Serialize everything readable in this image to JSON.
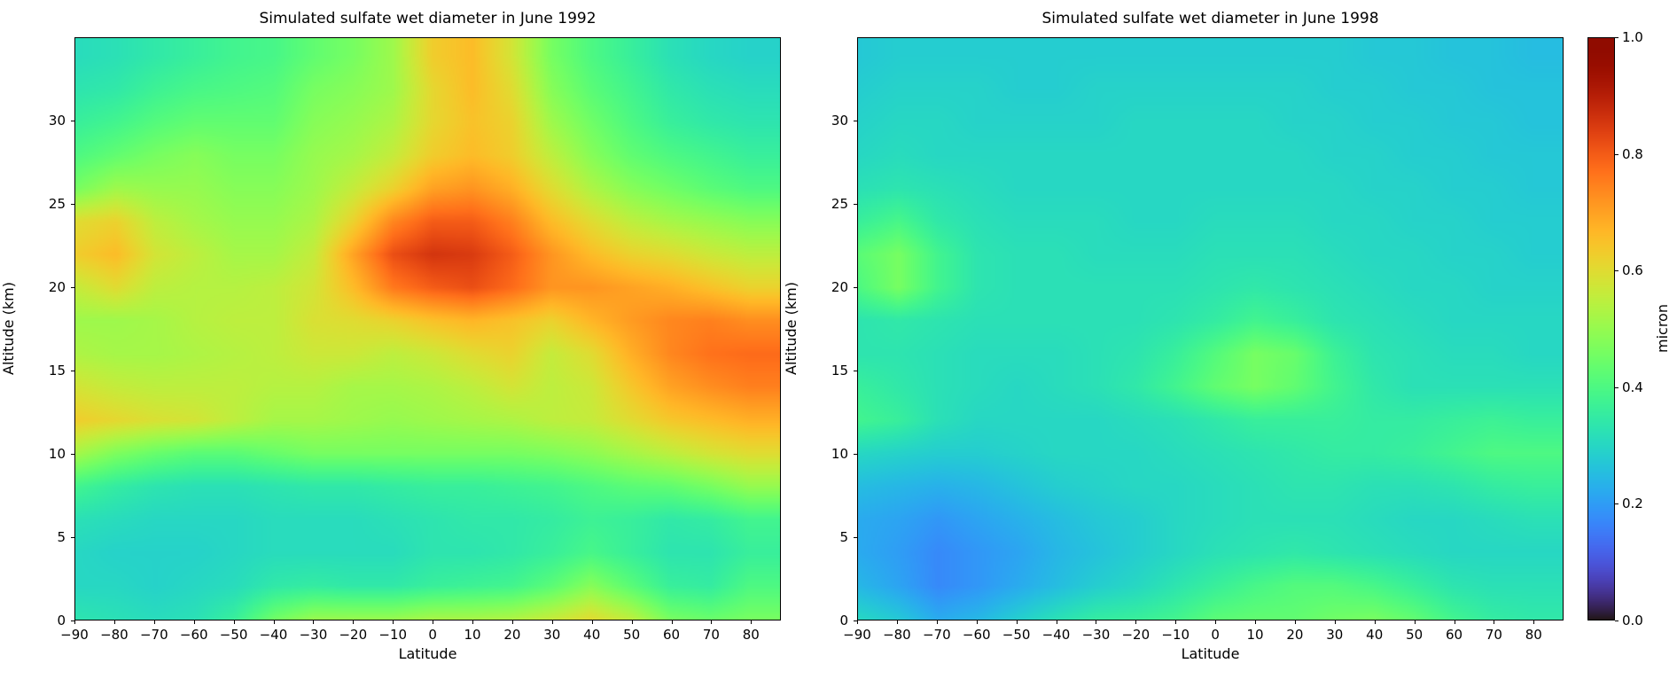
{
  "figure": {
    "background": "#ffffff"
  },
  "chart_data": [
    {
      "type": "heatmap",
      "title": "Simulated sulfate wet diameter in June 1992",
      "xlabel": "Latitude",
      "ylabel": "Altitude (km)",
      "colormap": "turbo",
      "vmin": 0.0,
      "vmax": 1.0,
      "xlim": [
        -90,
        87.5
      ],
      "ylim": [
        0,
        35
      ],
      "x": [
        -90,
        -80,
        -70,
        -60,
        -50,
        -40,
        -30,
        -20,
        -10,
        0,
        10,
        20,
        30,
        40,
        50,
        60,
        70,
        80
      ],
      "y": [
        0,
        2,
        4,
        6,
        8,
        10,
        12,
        14,
        16,
        18,
        20,
        22,
        24,
        26,
        28,
        30,
        32,
        34
      ],
      "x_tick_labels": [
        "−90",
        "−80",
        "−70",
        "−60",
        "−50",
        "−40",
        "−30",
        "−20",
        "−10",
        "0",
        "10",
        "20",
        "30",
        "40",
        "50",
        "60",
        "70",
        "80"
      ],
      "y_ticks": [
        0,
        5,
        10,
        15,
        20,
        25,
        30
      ],
      "y_tick_labels": [
        "0",
        "5",
        "10",
        "15",
        "20",
        "25",
        "30"
      ],
      "values": [
        [
          0.33,
          0.32,
          0.31,
          0.32,
          0.36,
          0.45,
          0.5,
          0.5,
          0.5,
          0.52,
          0.52,
          0.53,
          0.56,
          0.6,
          0.55,
          0.46,
          0.44,
          0.46
        ],
        [
          0.3,
          0.3,
          0.29,
          0.3,
          0.31,
          0.34,
          0.35,
          0.34,
          0.34,
          0.36,
          0.37,
          0.38,
          0.42,
          0.48,
          0.42,
          0.36,
          0.35,
          0.4
        ],
        [
          0.3,
          0.29,
          0.29,
          0.29,
          0.3,
          0.31,
          0.31,
          0.31,
          0.31,
          0.33,
          0.33,
          0.34,
          0.36,
          0.39,
          0.36,
          0.33,
          0.33,
          0.36
        ],
        [
          0.32,
          0.31,
          0.3,
          0.3,
          0.3,
          0.31,
          0.31,
          0.31,
          0.32,
          0.33,
          0.34,
          0.34,
          0.35,
          0.37,
          0.36,
          0.34,
          0.35,
          0.38
        ],
        [
          0.38,
          0.35,
          0.33,
          0.32,
          0.32,
          0.33,
          0.34,
          0.34,
          0.35,
          0.36,
          0.36,
          0.37,
          0.38,
          0.4,
          0.42,
          0.43,
          0.46,
          0.5
        ],
        [
          0.52,
          0.47,
          0.44,
          0.42,
          0.42,
          0.44,
          0.46,
          0.46,
          0.46,
          0.46,
          0.46,
          0.46,
          0.47,
          0.49,
          0.52,
          0.55,
          0.58,
          0.6
        ],
        [
          0.63,
          0.61,
          0.59,
          0.58,
          0.55,
          0.52,
          0.52,
          0.51,
          0.5,
          0.51,
          0.52,
          0.53,
          0.55,
          0.56,
          0.6,
          0.64,
          0.66,
          0.68
        ],
        [
          0.58,
          0.56,
          0.55,
          0.55,
          0.55,
          0.54,
          0.54,
          0.52,
          0.52,
          0.53,
          0.55,
          0.58,
          0.55,
          0.57,
          0.64,
          0.7,
          0.73,
          0.75
        ],
        [
          0.53,
          0.52,
          0.52,
          0.53,
          0.54,
          0.55,
          0.57,
          0.57,
          0.55,
          0.57,
          0.6,
          0.62,
          0.56,
          0.6,
          0.68,
          0.74,
          0.77,
          0.78
        ],
        [
          0.51,
          0.51,
          0.52,
          0.54,
          0.55,
          0.55,
          0.59,
          0.6,
          0.62,
          0.65,
          0.67,
          0.65,
          0.62,
          0.67,
          0.71,
          0.74,
          0.75,
          0.73
        ],
        [
          0.56,
          0.6,
          0.55,
          0.54,
          0.54,
          0.55,
          0.58,
          0.66,
          0.76,
          0.8,
          0.82,
          0.78,
          0.72,
          0.72,
          0.7,
          0.68,
          0.65,
          0.62
        ],
        [
          0.63,
          0.66,
          0.58,
          0.55,
          0.52,
          0.52,
          0.56,
          0.7,
          0.82,
          0.86,
          0.85,
          0.8,
          0.72,
          0.66,
          0.62,
          0.6,
          0.57,
          0.55
        ],
        [
          0.6,
          0.62,
          0.55,
          0.52,
          0.5,
          0.5,
          0.53,
          0.62,
          0.74,
          0.8,
          0.8,
          0.75,
          0.66,
          0.6,
          0.55,
          0.52,
          0.5,
          0.48
        ],
        [
          0.46,
          0.51,
          0.5,
          0.5,
          0.48,
          0.48,
          0.51,
          0.56,
          0.62,
          0.7,
          0.72,
          0.68,
          0.6,
          0.53,
          0.48,
          0.45,
          0.42,
          0.4
        ],
        [
          0.4,
          0.43,
          0.46,
          0.48,
          0.46,
          0.46,
          0.5,
          0.52,
          0.56,
          0.63,
          0.66,
          0.63,
          0.55,
          0.48,
          0.43,
          0.4,
          0.38,
          0.36
        ],
        [
          0.36,
          0.38,
          0.41,
          0.43,
          0.43,
          0.43,
          0.48,
          0.5,
          0.53,
          0.61,
          0.65,
          0.62,
          0.51,
          0.45,
          0.4,
          0.36,
          0.34,
          0.33
        ],
        [
          0.33,
          0.34,
          0.37,
          0.39,
          0.4,
          0.41,
          0.46,
          0.48,
          0.51,
          0.61,
          0.66,
          0.6,
          0.48,
          0.42,
          0.38,
          0.34,
          0.32,
          0.31
        ],
        [
          0.31,
          0.32,
          0.34,
          0.36,
          0.38,
          0.39,
          0.43,
          0.46,
          0.51,
          0.63,
          0.66,
          0.58,
          0.46,
          0.4,
          0.36,
          0.32,
          0.3,
          0.29
        ]
      ]
    },
    {
      "type": "heatmap",
      "title": "Simulated sulfate wet diameter in June 1998",
      "xlabel": "Latitude",
      "ylabel": "Altitude (km)",
      "colormap": "turbo",
      "vmin": 0.0,
      "vmax": 1.0,
      "xlim": [
        -90,
        87.5
      ],
      "ylim": [
        0,
        35
      ],
      "x": [
        -90,
        -80,
        -70,
        -60,
        -50,
        -40,
        -30,
        -20,
        -10,
        0,
        10,
        20,
        30,
        40,
        50,
        60,
        70,
        80
      ],
      "y": [
        0,
        2,
        4,
        6,
        8,
        10,
        12,
        14,
        16,
        18,
        20,
        22,
        24,
        26,
        28,
        30,
        32,
        34
      ],
      "x_tick_labels": [
        "−90",
        "−80",
        "−70",
        "−60",
        "−50",
        "−40",
        "−30",
        "−20",
        "−10",
        "0",
        "10",
        "20",
        "30",
        "40",
        "50",
        "60",
        "70",
        "80"
      ],
      "y_ticks": [
        0,
        5,
        10,
        15,
        20,
        25,
        30
      ],
      "y_tick_labels": [
        "0",
        "5",
        "10",
        "15",
        "20",
        "25",
        "30"
      ],
      "values": [
        [
          0.3,
          0.27,
          0.22,
          0.24,
          0.28,
          0.32,
          0.35,
          0.36,
          0.38,
          0.42,
          0.43,
          0.43,
          0.45,
          0.46,
          0.43,
          0.38,
          0.35,
          0.34
        ],
        [
          0.24,
          0.21,
          0.17,
          0.19,
          0.22,
          0.25,
          0.28,
          0.3,
          0.33,
          0.36,
          0.39,
          0.41,
          0.41,
          0.39,
          0.36,
          0.33,
          0.32,
          0.32
        ],
        [
          0.22,
          0.2,
          0.17,
          0.19,
          0.21,
          0.24,
          0.26,
          0.28,
          0.3,
          0.32,
          0.33,
          0.34,
          0.33,
          0.32,
          0.31,
          0.3,
          0.3,
          0.3
        ],
        [
          0.22,
          0.21,
          0.19,
          0.21,
          0.23,
          0.25,
          0.27,
          0.28,
          0.3,
          0.31,
          0.32,
          0.32,
          0.32,
          0.31,
          0.3,
          0.3,
          0.31,
          0.32
        ],
        [
          0.25,
          0.24,
          0.23,
          0.24,
          0.26,
          0.28,
          0.29,
          0.3,
          0.3,
          0.31,
          0.32,
          0.33,
          0.33,
          0.32,
          0.32,
          0.33,
          0.35,
          0.36
        ],
        [
          0.3,
          0.29,
          0.28,
          0.28,
          0.29,
          0.3,
          0.3,
          0.3,
          0.31,
          0.32,
          0.33,
          0.34,
          0.35,
          0.35,
          0.36,
          0.38,
          0.4,
          0.4
        ],
        [
          0.38,
          0.36,
          0.32,
          0.3,
          0.3,
          0.3,
          0.3,
          0.31,
          0.32,
          0.34,
          0.36,
          0.36,
          0.36,
          0.35,
          0.35,
          0.36,
          0.37,
          0.36
        ],
        [
          0.36,
          0.34,
          0.32,
          0.31,
          0.3,
          0.31,
          0.32,
          0.34,
          0.38,
          0.43,
          0.46,
          0.43,
          0.38,
          0.34,
          0.32,
          0.32,
          0.32,
          0.32
        ],
        [
          0.33,
          0.33,
          0.32,
          0.31,
          0.31,
          0.31,
          0.32,
          0.33,
          0.36,
          0.41,
          0.46,
          0.44,
          0.37,
          0.33,
          0.32,
          0.31,
          0.31,
          0.3
        ],
        [
          0.33,
          0.34,
          0.33,
          0.32,
          0.32,
          0.32,
          0.32,
          0.32,
          0.33,
          0.35,
          0.38,
          0.36,
          0.33,
          0.32,
          0.31,
          0.3,
          0.3,
          0.3
        ],
        [
          0.4,
          0.46,
          0.38,
          0.33,
          0.32,
          0.32,
          0.32,
          0.32,
          0.32,
          0.33,
          0.34,
          0.33,
          0.32,
          0.31,
          0.3,
          0.3,
          0.29,
          0.29
        ],
        [
          0.42,
          0.46,
          0.38,
          0.33,
          0.32,
          0.32,
          0.31,
          0.31,
          0.31,
          0.32,
          0.32,
          0.32,
          0.31,
          0.3,
          0.3,
          0.29,
          0.29,
          0.28
        ],
        [
          0.36,
          0.39,
          0.34,
          0.32,
          0.31,
          0.31,
          0.31,
          0.3,
          0.3,
          0.31,
          0.31,
          0.31,
          0.3,
          0.3,
          0.29,
          0.29,
          0.28,
          0.28
        ],
        [
          0.32,
          0.33,
          0.32,
          0.31,
          0.3,
          0.3,
          0.3,
          0.3,
          0.3,
          0.3,
          0.3,
          0.3,
          0.3,
          0.29,
          0.29,
          0.28,
          0.28,
          0.27
        ],
        [
          0.3,
          0.31,
          0.3,
          0.3,
          0.3,
          0.3,
          0.3,
          0.3,
          0.3,
          0.3,
          0.3,
          0.3,
          0.29,
          0.29,
          0.28,
          0.28,
          0.27,
          0.27
        ],
        [
          0.29,
          0.3,
          0.3,
          0.29,
          0.29,
          0.29,
          0.29,
          0.3,
          0.3,
          0.3,
          0.3,
          0.29,
          0.29,
          0.28,
          0.28,
          0.27,
          0.27,
          0.26
        ],
        [
          0.28,
          0.29,
          0.29,
          0.29,
          0.28,
          0.28,
          0.29,
          0.29,
          0.29,
          0.29,
          0.29,
          0.29,
          0.28,
          0.28,
          0.27,
          0.27,
          0.26,
          0.26
        ],
        [
          0.27,
          0.28,
          0.28,
          0.28,
          0.28,
          0.28,
          0.28,
          0.28,
          0.28,
          0.28,
          0.28,
          0.28,
          0.28,
          0.27,
          0.27,
          0.26,
          0.26,
          0.25
        ]
      ]
    },
    {
      "type": "colorbar",
      "label": "micron",
      "orientation": "vertical",
      "position": "right",
      "colormap": "turbo",
      "vmin": 0.0,
      "vmax": 1.0,
      "ticks": [
        1.0,
        0.8,
        0.6,
        0.4,
        0.2,
        0.0
      ],
      "tick_labels": [
        "1.0",
        "0.8",
        "0.6",
        "0.4",
        "0.2",
        "0.0"
      ]
    }
  ]
}
